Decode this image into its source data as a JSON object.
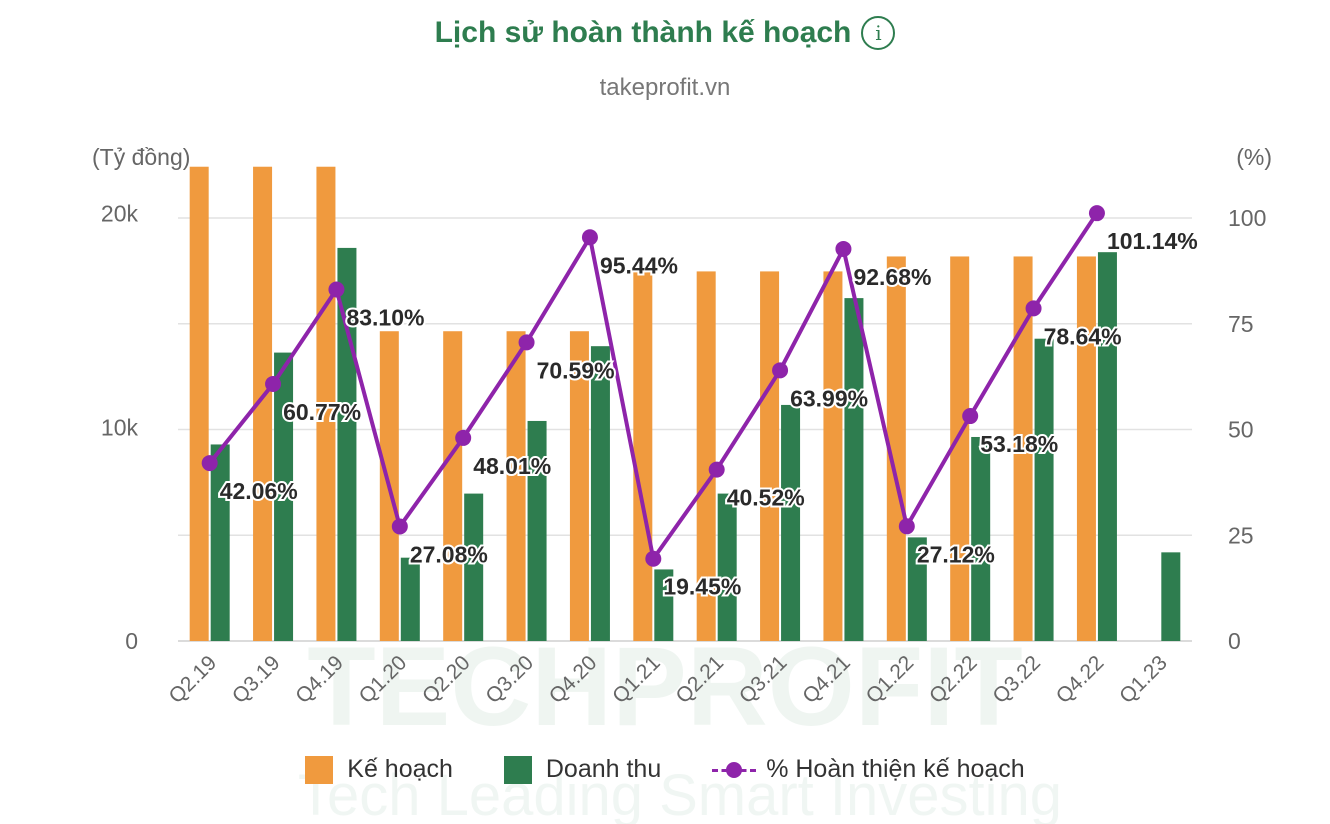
{
  "title": "Lịch sử hoàn thành kế hoạch",
  "subtitle": "takeprofit.vn",
  "watermark": {
    "main": "TECHPROFIT",
    "tagline": "Tech Leading Smart Investing"
  },
  "colors": {
    "plan": "#f09a3e",
    "revenue": "#2e7d4f",
    "pct": "#8e24aa",
    "title": "#2e7d4f"
  },
  "icons": {
    "info": "info-icon"
  },
  "info_glyph": "i",
  "chart_data": {
    "type": "bar",
    "title": "Lịch sử hoàn thành kế hoạch",
    "left_axis_label": "(Tỷ đồng)",
    "right_axis_label": "(%)",
    "categories": [
      "Q2.19",
      "Q3.19",
      "Q4.19",
      "Q1.20",
      "Q2.20",
      "Q3.20",
      "Q4.20",
      "Q1.21",
      "Q2.21",
      "Q3.21",
      "Q4.21",
      "Q1.22",
      "Q2.22",
      "Q3.22",
      "Q4.22",
      "Q1.23"
    ],
    "left_ticks": [
      "0",
      "10k",
      "20k"
    ],
    "left_tick_values": [
      0,
      10000,
      20000
    ],
    "right_ticks": [
      "0",
      "25",
      "50",
      "75",
      "100"
    ],
    "right_tick_values": [
      0,
      25,
      50,
      75,
      100
    ],
    "ylim_left": [
      0,
      22000
    ],
    "ylim_right": [
      0,
      100
    ],
    "grid": true,
    "legend_position": "bottom",
    "series": [
      {
        "name": "Kế hoạch",
        "type": "bar",
        "axis": "left",
        "values": [
          22200,
          22200,
          22200,
          14500,
          14500,
          14500,
          14500,
          17300,
          17300,
          17300,
          17300,
          18000,
          18000,
          18000,
          18000,
          null
        ]
      },
      {
        "name": "Doanh thu",
        "type": "bar",
        "axis": "left",
        "values": [
          9200,
          13500,
          18400,
          3900,
          6900,
          10300,
          13800,
          3350,
          6900,
          11050,
          16050,
          4850,
          9550,
          14150,
          18200,
          4150
        ]
      },
      {
        "name": "% Hoàn thiện kế hoạch",
        "type": "line",
        "axis": "right",
        "values": [
          42.06,
          60.77,
          83.1,
          27.08,
          48.01,
          70.59,
          95.44,
          19.45,
          40.52,
          63.99,
          92.68,
          27.12,
          53.18,
          78.64,
          101.14,
          null
        ],
        "labels": [
          "42.06%",
          "60.77%",
          "83.10%",
          "27.08%",
          "48.01%",
          "70.59%",
          "95.44%",
          "19.45%",
          "40.52%",
          "63.99%",
          "92.68%",
          "27.12%",
          "53.18%",
          "78.64%",
          "101.14%",
          null
        ]
      }
    ]
  }
}
